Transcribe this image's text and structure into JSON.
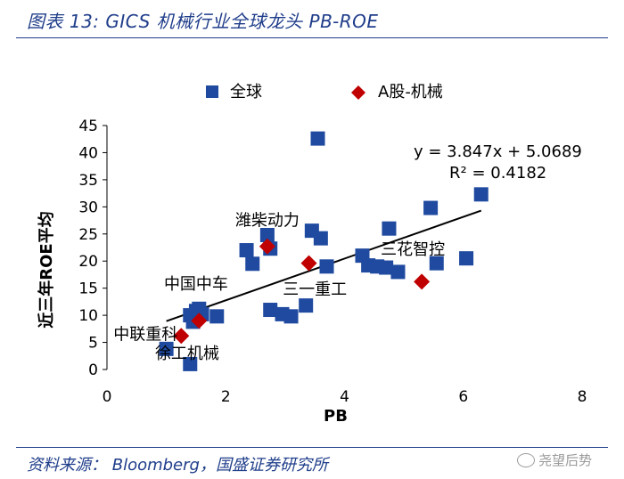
{
  "figure": {
    "title": "图表 13:  GICS 机械行业全球龙头 PB-ROE",
    "source": "资料来源： Bloomberg，国盛证券研究所",
    "watermark": "尧望后势"
  },
  "colors": {
    "global": "#1f4aa0",
    "ashare": "#c00000",
    "trend": "#000000",
    "title": "#1f3d8a"
  },
  "chart_data": {
    "type": "scatter",
    "title": "",
    "xlabel": "PB",
    "ylabel": "近三年ROE平均",
    "xlim": [
      0,
      8
    ],
    "ylim": [
      0,
      45
    ],
    "xticks": [
      0,
      2,
      4,
      6,
      8
    ],
    "yticks": [
      0,
      5,
      10,
      15,
      20,
      25,
      30,
      35,
      40,
      45
    ],
    "grid": false,
    "legend": {
      "position": "top",
      "entries": [
        "全球",
        "A股-机械"
      ]
    },
    "series": [
      {
        "name": "全球",
        "marker": "square",
        "points": [
          [
            1.0,
            3.8
          ],
          [
            1.4,
            10.0
          ],
          [
            1.45,
            8.8
          ],
          [
            1.5,
            10.8
          ],
          [
            1.55,
            11.2
          ],
          [
            1.6,
            10.2
          ],
          [
            1.85,
            9.8
          ],
          [
            1.4,
            1.0
          ],
          [
            2.35,
            22.0
          ],
          [
            2.45,
            19.5
          ],
          [
            2.7,
            24.8
          ],
          [
            2.75,
            22.3
          ],
          [
            2.75,
            11.0
          ],
          [
            2.95,
            10.2
          ],
          [
            3.1,
            9.8
          ],
          [
            3.35,
            11.8
          ],
          [
            3.45,
            25.6
          ],
          [
            3.55,
            42.6
          ],
          [
            3.6,
            24.2
          ],
          [
            3.7,
            19.0
          ],
          [
            4.3,
            21.0
          ],
          [
            4.4,
            19.2
          ],
          [
            4.55,
            19.0
          ],
          [
            4.7,
            18.8
          ],
          [
            4.75,
            26.0
          ],
          [
            4.9,
            18.0
          ],
          [
            5.45,
            29.8
          ],
          [
            5.55,
            19.6
          ],
          [
            6.05,
            20.5
          ],
          [
            6.3,
            32.3
          ]
        ]
      },
      {
        "name": "A股-机械",
        "marker": "diamond",
        "points": [
          [
            1.25,
            6.2
          ],
          [
            1.55,
            9.0
          ],
          [
            2.7,
            22.7
          ],
          [
            3.4,
            19.6
          ],
          [
            5.3,
            16.2
          ]
        ]
      }
    ],
    "trendline": {
      "slope": 3.847,
      "intercept": 5.0689,
      "x_range": [
        1.0,
        6.3
      ],
      "equation_label": "y = 3.847x + 5.0689",
      "r2_label": "R² = 0.4182"
    },
    "annotations": [
      {
        "text": "潍柴动力",
        "x": 2.7,
        "y": 26.5
      },
      {
        "text": "三花智控",
        "x": 5.15,
        "y": 21.2
      },
      {
        "text": "三一重工",
        "x": 3.5,
        "y": 13.8
      },
      {
        "text": "中国中车",
        "x": 1.5,
        "y": 14.8
      },
      {
        "text": "中联重科",
        "x": 0.65,
        "y": 5.5
      },
      {
        "text": "徐工机械",
        "x": 1.35,
        "y": 2.0
      }
    ]
  }
}
